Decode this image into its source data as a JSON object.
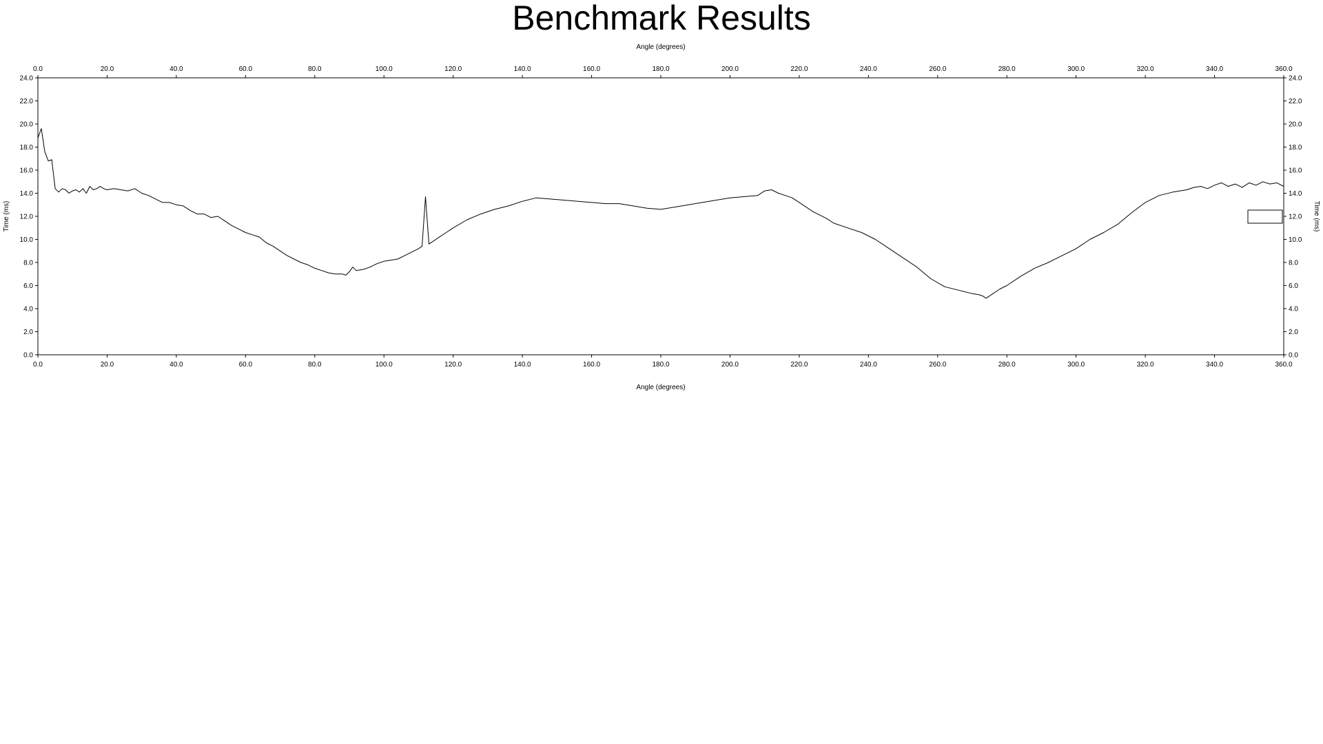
{
  "title": "Benchmark Results",
  "chart_data": {
    "type": "line",
    "title": "Benchmark Results",
    "xlabel": "Angle (degrees)",
    "ylabel": "Time (ms)",
    "xlim": [
      0,
      360
    ],
    "ylim": [
      0,
      24
    ],
    "xticks": [
      "0.0",
      "20.0",
      "40.0",
      "60.0",
      "80.0",
      "100.0",
      "120.0",
      "140.0",
      "160.0",
      "180.0",
      "200.0",
      "220.0",
      "240.0",
      "260.0",
      "280.0",
      "300.0",
      "320.0",
      "340.0",
      "360.0"
    ],
    "yticks": [
      "0.0",
      "2.0",
      "4.0",
      "6.0",
      "8.0",
      "10.0",
      "12.0",
      "14.0",
      "16.0",
      "18.0",
      "20.0",
      "22.0",
      "24.0"
    ],
    "grid": false,
    "legend": "right (empty box)",
    "line_color": "#000000",
    "series": [
      {
        "x": [
          0,
          1,
          2,
          3,
          4,
          5,
          6,
          7,
          8,
          9,
          10,
          11,
          12,
          13,
          14,
          15,
          16,
          17,
          18,
          19,
          20,
          22,
          24,
          26,
          28,
          30,
          32,
          34,
          36,
          38,
          40,
          42,
          44,
          46,
          48,
          50,
          52,
          54,
          56,
          58,
          60,
          62,
          64,
          66,
          68,
          70,
          72,
          74,
          76,
          78,
          80,
          82,
          84,
          86,
          88,
          89,
          90,
          91,
          92,
          94,
          96,
          98,
          100,
          102,
          104,
          106,
          108,
          110,
          111,
          112,
          113,
          114,
          116,
          118,
          120,
          124,
          128,
          132,
          136,
          140,
          144,
          148,
          152,
          156,
          160,
          164,
          168,
          172,
          176,
          180,
          184,
          188,
          192,
          196,
          200,
          204,
          208,
          210,
          212,
          214,
          216,
          218,
          220,
          222,
          224,
          226,
          228,
          230,
          234,
          238,
          242,
          246,
          250,
          254,
          258,
          262,
          266,
          270,
          272,
          273,
          274,
          276,
          278,
          280,
          284,
          288,
          292,
          296,
          300,
          304,
          308,
          312,
          316,
          320,
          324,
          328,
          332,
          334,
          336,
          338,
          340,
          342,
          344,
          346,
          348,
          350,
          352,
          354,
          356,
          358,
          360
        ],
        "y": [
          18.8,
          19.6,
          17.6,
          16.8,
          16.9,
          14.4,
          14.1,
          14.4,
          14.3,
          14.0,
          14.2,
          14.3,
          14.1,
          14.4,
          14.0,
          14.6,
          14.3,
          14.4,
          14.6,
          14.4,
          14.3,
          14.4,
          14.3,
          14.2,
          14.4,
          14.0,
          13.8,
          13.5,
          13.2,
          13.2,
          13.0,
          12.9,
          12.5,
          12.2,
          12.2,
          11.9,
          12.0,
          11.6,
          11.2,
          10.9,
          10.6,
          10.4,
          10.2,
          9.7,
          9.4,
          9.0,
          8.6,
          8.3,
          8.0,
          7.8,
          7.5,
          7.3,
          7.1,
          7.0,
          7.0,
          6.9,
          7.2,
          7.6,
          7.3,
          7.4,
          7.6,
          7.9,
          8.1,
          8.2,
          8.3,
          8.6,
          8.9,
          9.2,
          9.4,
          13.7,
          9.6,
          9.8,
          10.2,
          10.6,
          11.0,
          11.7,
          12.2,
          12.6,
          12.9,
          13.3,
          13.6,
          13.5,
          13.4,
          13.3,
          13.2,
          13.1,
          13.1,
          12.9,
          12.7,
          12.6,
          12.8,
          13.0,
          13.2,
          13.4,
          13.6,
          13.7,
          13.8,
          14.2,
          14.3,
          14.0,
          13.8,
          13.6,
          13.2,
          12.8,
          12.4,
          12.1,
          11.8,
          11.4,
          11.0,
          10.6,
          10.0,
          9.2,
          8.4,
          7.6,
          6.6,
          5.9,
          5.6,
          5.3,
          5.2,
          5.1,
          4.9,
          5.3,
          5.7,
          6.0,
          6.8,
          7.5,
          8.0,
          8.6,
          9.2,
          10.0,
          10.6,
          11.3,
          12.3,
          13.2,
          13.8,
          14.1,
          14.3,
          14.5,
          14.6,
          14.4,
          14.7,
          14.9,
          14.6,
          14.8,
          14.5,
          14.9,
          14.7,
          15.0,
          14.8,
          14.9,
          14.6
        ]
      }
    ]
  }
}
